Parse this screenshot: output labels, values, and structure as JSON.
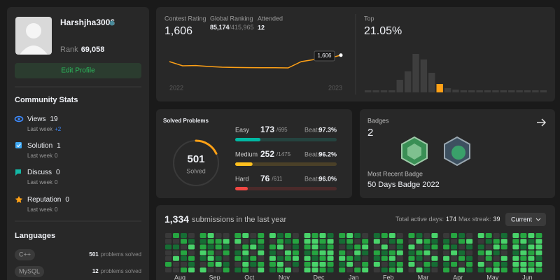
{
  "profile": {
    "username": "Harshjha3006",
    "rank_label": "Rank",
    "rank": "69,058",
    "edit_button": "Edit Profile"
  },
  "community_stats": {
    "title": "Community Stats",
    "items": [
      {
        "label": "Views",
        "value": 19,
        "last_week_label": "Last week",
        "last_week": "+2"
      },
      {
        "label": "Solution",
        "value": 1,
        "last_week_label": "Last week",
        "last_week": 0
      },
      {
        "label": "Discuss",
        "value": 0,
        "last_week_label": "Last week",
        "last_week": 0
      },
      {
        "label": "Reputation",
        "value": 0,
        "last_week_label": "Last week",
        "last_week": 0
      }
    ]
  },
  "languages": {
    "title": "Languages",
    "items": [
      {
        "name": "C++",
        "solved": 501,
        "suffix": "problems solved"
      },
      {
        "name": "MySQL",
        "solved": 12,
        "suffix": "problems solved"
      }
    ]
  },
  "contest": {
    "rating_label": "Contest Rating",
    "rating": "1,606",
    "global_ranking_label": "Global Ranking",
    "global_ranking": "85,174",
    "global_total": "/415,965",
    "attended_label": "Attended",
    "attended": 12,
    "start_label": "2022",
    "end_label": "2023",
    "rating_history": [
      1560,
      1530,
      1532,
      1525,
      1520,
      1518,
      1517,
      1516,
      1516,
      1515,
      1560,
      1575,
      1582,
      1606
    ],
    "ylim": [
      1450,
      1650
    ],
    "line_color": "#ffa116"
  },
  "top": {
    "label": "Top",
    "value": "21.05%",
    "distribution": [
      3,
      3,
      3,
      3,
      18,
      30,
      55,
      47,
      28,
      12,
      6,
      4,
      3,
      3,
      3,
      3,
      3,
      3,
      3,
      3,
      3,
      3,
      3
    ],
    "ylim": [
      0,
      55
    ],
    "highlight_index": 9,
    "bar_color": "#3e3e3e",
    "highlight_color": "#ffa116"
  },
  "solved": {
    "title": "Solved Problems",
    "total": 501,
    "total_label": "Solved",
    "beats_label": "Beats",
    "levels": [
      {
        "name": "Easy",
        "solved": 173,
        "total": {
          "value": 695,
          "label": "/695"
        },
        "beats": {
          "value": 97.3,
          "label": "97.3%"
        },
        "color": "#00b8a3",
        "track": "#25433f"
      },
      {
        "name": "Medium",
        "solved": 252,
        "total": {
          "value": 1475,
          "label": "/1475"
        },
        "beats": {
          "value": 96.2,
          "label": "96.2%"
        },
        "color": "#ffc01e",
        "track": "#4a4028"
      },
      {
        "name": "Hard",
        "solved": 76,
        "total": {
          "value": 611,
          "label": "/611"
        },
        "beats": {
          "value": 96.0,
          "label": "96.0%"
        },
        "color": "#ef4743",
        "track": "#4a2a2a"
      }
    ]
  },
  "badges": {
    "label": "Badges",
    "count": 2,
    "recent_label": "Most Recent Badge",
    "recent": "50 Days Badge 2022"
  },
  "submissions": {
    "count": "1,334",
    "label": "submissions in the last year",
    "active_days_label": "Total active days:",
    "active_days": 174,
    "max_streak_label": "Max streak:",
    "max_streak": 39,
    "dropdown": "Current",
    "level_colors": [
      "#393939",
      "#166d34",
      "#26a641",
      "#49d36a"
    ],
    "months": [
      {
        "name": "Aug",
        "weeks": [
          [
            0,
            0,
            1,
            0,
            0,
            2,
            0
          ],
          [
            2,
            0,
            1,
            0,
            3,
            0,
            0
          ],
          [
            1,
            2,
            0,
            2,
            1,
            0,
            2
          ],
          [
            0,
            1,
            3,
            0,
            2,
            1,
            3
          ]
        ]
      },
      {
        "name": "Sep",
        "weeks": [
          [
            2,
            1,
            2,
            3,
            1,
            0,
            3
          ],
          [
            3,
            2,
            1,
            2,
            3,
            2,
            0
          ],
          [
            0,
            2,
            2,
            0,
            1,
            3,
            0
          ],
          [
            0,
            3,
            1,
            2,
            0,
            1,
            2
          ]
        ]
      },
      {
        "name": "Oct",
        "weeks": [
          [
            2,
            3,
            0,
            1,
            2,
            0,
            1
          ],
          [
            3,
            0,
            2,
            3,
            1,
            3,
            2
          ],
          [
            0,
            1,
            3,
            0,
            2,
            1,
            0
          ],
          [
            2,
            2,
            1,
            3,
            0,
            2,
            3
          ]
        ]
      },
      {
        "name": "Nov",
        "weeks": [
          [
            3,
            0,
            2,
            1,
            3,
            2,
            1
          ],
          [
            1,
            2,
            3,
            0,
            1,
            3,
            2
          ],
          [
            2,
            1,
            0,
            3,
            2,
            0,
            3
          ],
          [
            0,
            2,
            1,
            2,
            3,
            1,
            0
          ]
        ]
      },
      {
        "name": "Dec",
        "weeks": [
          [
            3,
            3,
            2,
            1,
            3,
            2,
            3
          ],
          [
            2,
            3,
            3,
            2,
            1,
            3,
            3
          ],
          [
            3,
            2,
            1,
            3,
            2,
            3,
            2
          ],
          [
            1,
            3,
            2,
            3,
            3,
            2,
            1
          ]
        ]
      },
      {
        "name": "Jan",
        "weeks": [
          [
            2,
            1,
            0,
            2,
            3,
            1,
            2
          ],
          [
            3,
            2,
            1,
            0,
            2,
            3,
            0
          ],
          [
            1,
            0,
            2,
            3,
            1,
            0,
            2
          ],
          [
            0,
            2,
            3,
            1,
            0,
            2,
            3
          ]
        ]
      },
      {
        "name": "Feb",
        "weeks": [
          [
            1,
            3,
            0,
            2,
            1,
            3,
            0
          ],
          [
            2,
            0,
            3,
            1,
            2,
            0,
            1
          ],
          [
            3,
            1,
            0,
            2,
            3,
            1,
            2
          ],
          [
            0,
            2,
            1,
            3,
            0,
            2,
            3
          ]
        ]
      },
      {
        "name": "Mar",
        "weeks": [
          [
            2,
            0,
            3,
            1,
            2,
            3,
            0
          ],
          [
            1,
            3,
            0,
            2,
            1,
            0,
            3
          ],
          [
            0,
            2,
            1,
            3,
            0,
            2,
            1
          ],
          [
            3,
            1,
            2,
            0,
            3,
            1,
            0
          ]
        ]
      },
      {
        "name": "Apr",
        "weeks": [
          [
            0,
            1,
            2,
            0,
            3,
            1,
            2
          ],
          [
            2,
            0,
            1,
            3,
            0,
            2,
            0
          ],
          [
            1,
            2,
            0,
            1,
            2,
            0,
            3
          ],
          [
            0,
            3,
            1,
            0,
            1,
            2,
            1
          ]
        ]
      },
      {
        "name": "May",
        "weeks": [
          [
            3,
            0,
            1,
            2,
            0,
            3,
            1
          ],
          [
            2,
            1,
            0,
            3,
            2,
            0,
            2
          ],
          [
            0,
            2,
            3,
            1,
            0,
            2,
            3
          ],
          [
            1,
            3,
            2,
            0,
            3,
            1,
            2
          ]
        ]
      },
      {
        "name": "Jun",
        "weeks": [
          [
            3,
            2,
            3,
            1,
            3,
            3,
            2
          ],
          [
            2,
            3,
            1,
            3,
            2,
            3,
            3
          ],
          [
            3,
            1,
            3,
            2,
            3,
            2,
            3
          ],
          [
            2,
            3,
            3,
            3,
            1,
            3,
            2
          ]
        ]
      }
    ]
  }
}
